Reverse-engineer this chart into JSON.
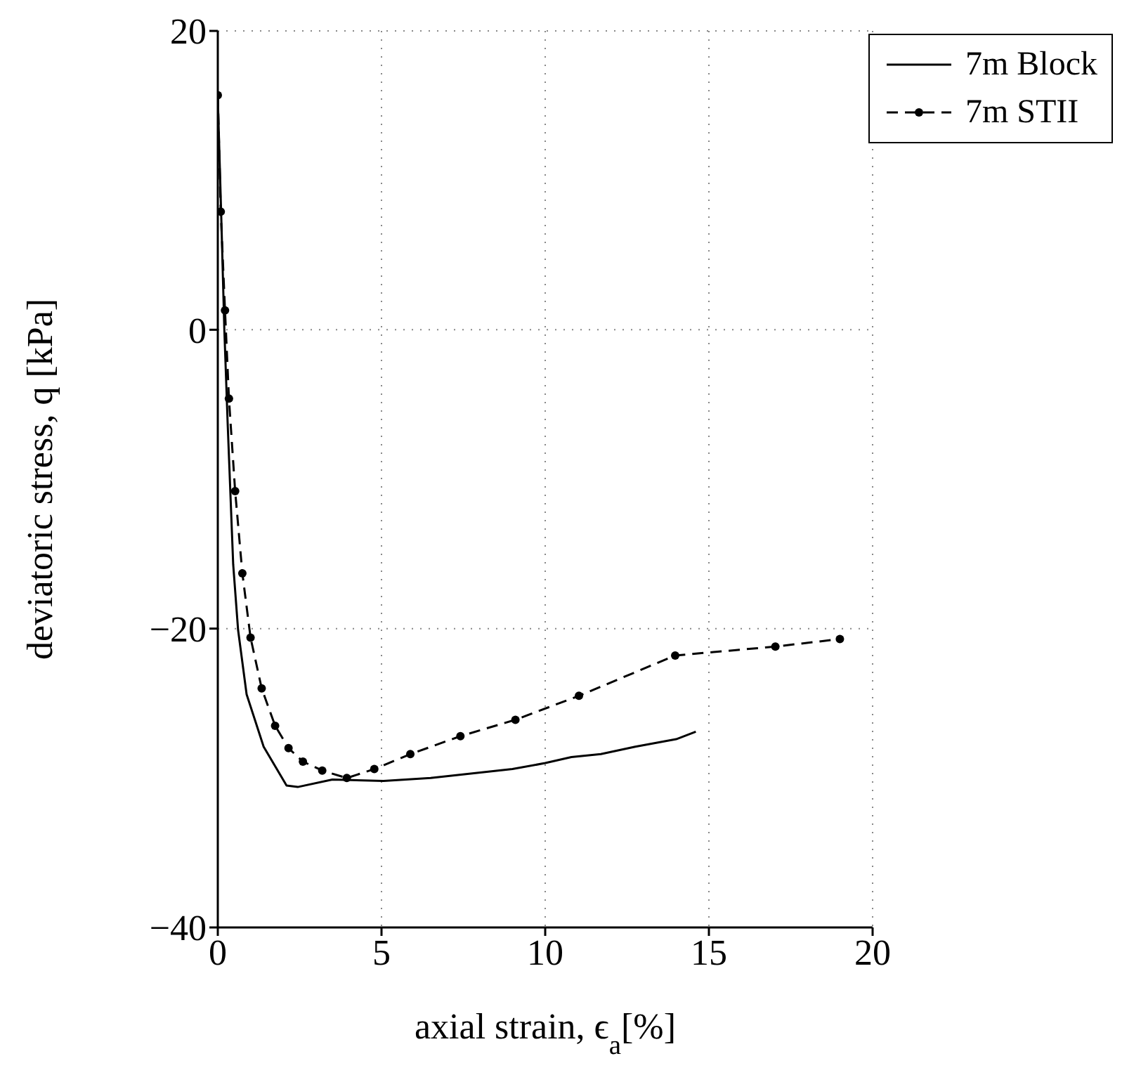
{
  "chart_data": {
    "type": "line",
    "xlabel": "axial strain, ϵ$_{a}$[%]",
    "ylabel": "deviatoric stress, q [kPa]",
    "xlim": [
      0,
      20
    ],
    "xticks": [
      0,
      5,
      10,
      15,
      20
    ],
    "ylim": [
      -40,
      20
    ],
    "yticks": [
      -40,
      -20,
      0,
      20
    ],
    "grid": true,
    "legend": "top right",
    "series": [
      {
        "name": "7m Block",
        "color": "#000000",
        "line_style": "solid",
        "marker": "none",
        "x": [
          0,
          0.1,
          0.2,
          0.3,
          0.47,
          0.62,
          0.88,
          1.4,
          2.1,
          2.44,
          3.5,
          5.06,
          6.5,
          9.0,
          10.0,
          10.8,
          11.7,
          12.75,
          14.0,
          14.6
        ],
        "values": [
          15.5,
          8,
          0,
          -6.2,
          -15.7,
          -20.1,
          -24.4,
          -27.9,
          -30.5,
          -30.6,
          -30.1,
          -30.2,
          -30.0,
          -29.4,
          -29.0,
          -28.6,
          -28.4,
          -27.9,
          -27.4,
          -26.9
        ]
      },
      {
        "name": "7m STII",
        "color": "#000000",
        "line_style": "dashed",
        "marker": "circle",
        "x": [
          0,
          0.09,
          0.22,
          0.34,
          0.53,
          0.75,
          1.0,
          1.34,
          1.75,
          2.16,
          2.6,
          3.19,
          3.94,
          4.78,
          5.88,
          7.41,
          9.09,
          11.03,
          13.97,
          17.03,
          19.0
        ],
        "values": [
          15.7,
          7.9,
          1.3,
          -4.6,
          -10.8,
          -16.3,
          -20.6,
          -24.0,
          -26.5,
          -28.0,
          -28.9,
          -29.5,
          -30.0,
          -29.4,
          -28.4,
          -27.2,
          -26.1,
          -24.5,
          -21.8,
          -21.2,
          -20.7
        ]
      }
    ]
  }
}
